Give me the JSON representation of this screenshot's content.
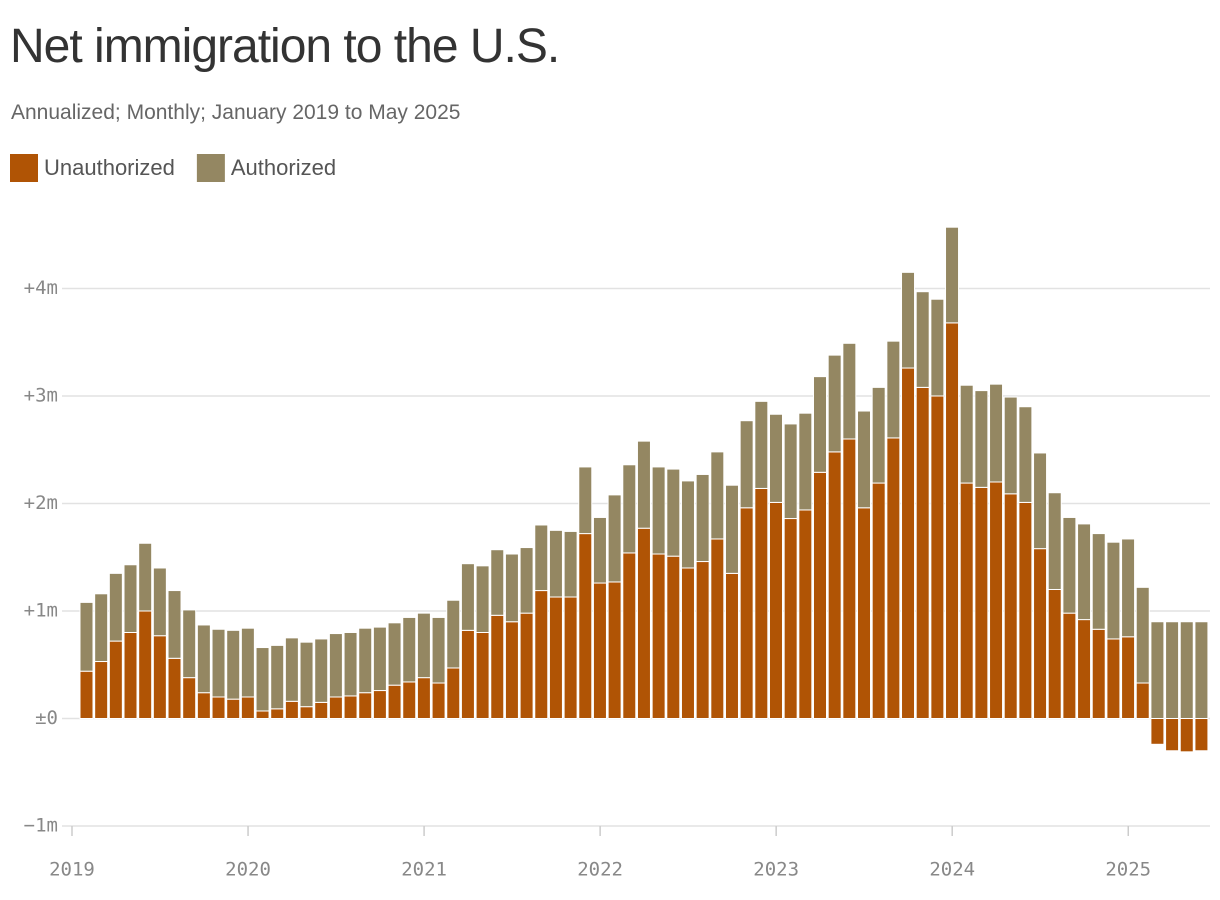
{
  "chart_data": {
    "type": "stacked_bar",
    "title": "Net immigration to the U.S.",
    "subtitle": "Annualized; Monthly; January 2019 to May 2025",
    "categories": [
      "2019",
      null,
      null,
      null,
      null,
      null,
      null,
      null,
      null,
      null,
      null,
      null,
      "2020",
      null,
      null,
      null,
      null,
      null,
      null,
      null,
      null,
      null,
      null,
      null,
      "2021",
      null,
      null,
      null,
      null,
      null,
      null,
      null,
      null,
      null,
      null,
      null,
      "2022",
      null,
      null,
      null,
      null,
      null,
      null,
      null,
      null,
      null,
      null,
      null,
      "2023",
      null,
      null,
      null,
      null,
      null,
      null,
      null,
      null,
      null,
      null,
      null,
      "2024",
      null,
      null,
      null,
      null,
      null,
      null,
      null,
      null,
      null,
      null,
      null,
      "2025",
      null,
      null,
      null,
      null
    ],
    "series": [
      {
        "name": "Unauthorized",
        "color": "#b05405",
        "values": [
          0.44,
          0.53,
          0.72,
          0.8,
          1.0,
          0.77,
          0.56,
          0.38,
          0.24,
          0.2,
          0.18,
          0.2,
          0.07,
          0.09,
          0.16,
          0.11,
          0.15,
          0.2,
          0.21,
          0.24,
          0.26,
          0.31,
          0.34,
          0.38,
          0.33,
          0.47,
          0.82,
          0.8,
          0.96,
          0.9,
          0.98,
          1.19,
          1.13,
          1.13,
          1.72,
          1.26,
          1.27,
          1.54,
          1.77,
          1.53,
          1.51,
          1.4,
          1.46,
          1.67,
          1.35,
          1.96,
          2.14,
          2.01,
          1.86,
          1.94,
          2.29,
          2.48,
          2.6,
          1.96,
          2.19,
          2.61,
          3.26,
          3.08,
          3.0,
          3.68,
          2.19,
          2.15,
          2.2,
          2.09,
          2.01,
          1.58,
          1.2,
          0.98,
          0.92,
          0.83,
          0.74,
          0.76,
          0.33,
          -0.24,
          -0.3,
          -0.31,
          -0.3
        ]
      },
      {
        "name": "Authorized",
        "color": "#948762",
        "values": [
          0.64,
          0.63,
          0.63,
          0.63,
          0.63,
          0.63,
          0.63,
          0.63,
          0.63,
          0.63,
          0.64,
          0.64,
          0.59,
          0.59,
          0.59,
          0.6,
          0.59,
          0.59,
          0.59,
          0.6,
          0.59,
          0.58,
          0.6,
          0.6,
          0.61,
          0.63,
          0.62,
          0.62,
          0.61,
          0.63,
          0.61,
          0.61,
          0.62,
          0.61,
          0.62,
          0.61,
          0.81,
          0.82,
          0.81,
          0.81,
          0.81,
          0.81,
          0.81,
          0.81,
          0.82,
          0.81,
          0.81,
          0.82,
          0.88,
          0.9,
          0.89,
          0.9,
          0.89,
          0.9,
          0.89,
          0.9,
          0.89,
          0.89,
          0.9,
          0.89,
          0.91,
          0.9,
          0.91,
          0.9,
          0.89,
          0.89,
          0.9,
          0.89,
          0.89,
          0.89,
          0.9,
          0.91,
          0.89,
          0.9,
          0.9,
          0.9,
          0.9
        ]
      }
    ],
    "ylim": [
      -1,
      4.65
    ],
    "yticks": [
      {
        "value": -1,
        "label": "−1m"
      },
      {
        "value": 0,
        "label": "±0"
      },
      {
        "value": 1,
        "label": "+1m"
      },
      {
        "value": 2,
        "label": "+2m"
      },
      {
        "value": 3,
        "label": "+3m"
      },
      {
        "value": 4,
        "label": "+4m"
      }
    ],
    "grid": true
  }
}
